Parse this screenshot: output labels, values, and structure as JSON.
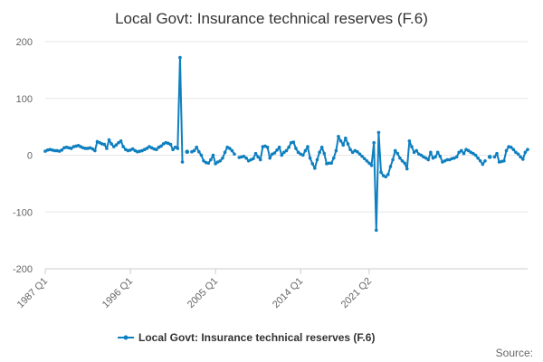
{
  "chart_data": {
    "type": "line",
    "title": "Local Govt: Insurance technical reserves (F.6)",
    "xlabel": "",
    "ylabel": "",
    "ylim": [
      -200,
      200
    ],
    "yticks": [
      200,
      100,
      0,
      -100,
      -200
    ],
    "xticks": [
      "1987 Q1",
      "1996 Q1",
      "2005 Q1",
      "2014 Q1",
      "2021 Q2"
    ],
    "grid": true,
    "legend_position": "bottom",
    "source": "Source:",
    "color": "#0e7fbf",
    "series": [
      {
        "name": "Local Govt: Insurance technical reserves (F.6)",
        "values": [
          7,
          9,
          10,
          9,
          8,
          8,
          7,
          9,
          13,
          14,
          13,
          12,
          15,
          16,
          17,
          15,
          13,
          12,
          12,
          13,
          11,
          8,
          24,
          22,
          20,
          19,
          12,
          27,
          20,
          15,
          18,
          22,
          25,
          15,
          10,
          8,
          9,
          11,
          8,
          6,
          7,
          8,
          10,
          12,
          15,
          13,
          11,
          10,
          14,
          16,
          20,
          22,
          21,
          19,
          10,
          14,
          12,
          172,
          -12,
          null,
          6,
          null,
          6,
          8,
          14,
          6,
          0,
          -10,
          -13,
          -14,
          -8,
          0,
          -15,
          -12,
          -10,
          -5,
          5,
          14,
          12,
          8,
          2,
          null,
          -4,
          -3,
          -2,
          -5,
          -10,
          -8,
          -6,
          3,
          -3,
          -8,
          15,
          16,
          14,
          -5,
          2,
          4,
          9,
          14,
          0,
          5,
          8,
          14,
          22,
          23,
          12,
          5,
          2,
          0,
          8,
          15,
          -5,
          -15,
          -23,
          -8,
          5,
          14,
          3,
          -15,
          -14,
          -14,
          -5,
          8,
          33,
          25,
          18,
          30,
          20,
          10,
          5,
          8,
          6,
          2,
          -2,
          -6,
          -10,
          -14,
          -18,
          22,
          -132,
          40,
          -30,
          -36,
          -38,
          -34,
          -20,
          -8,
          8,
          3,
          -5,
          -10,
          -14,
          -24,
          25,
          15,
          5,
          8,
          2,
          0,
          -3,
          -5,
          -8,
          5,
          -5,
          -3,
          5,
          -2,
          -12,
          -10,
          -8,
          -8,
          -6,
          -5,
          -3,
          5,
          8,
          3,
          10,
          8,
          5,
          3,
          0,
          -5,
          -10,
          -16,
          -10,
          null,
          -3,
          null,
          -3,
          3,
          -12,
          -11,
          -10,
          8,
          15,
          14,
          10,
          5,
          2,
          -3,
          -7,
          5,
          10
        ]
      }
    ]
  }
}
